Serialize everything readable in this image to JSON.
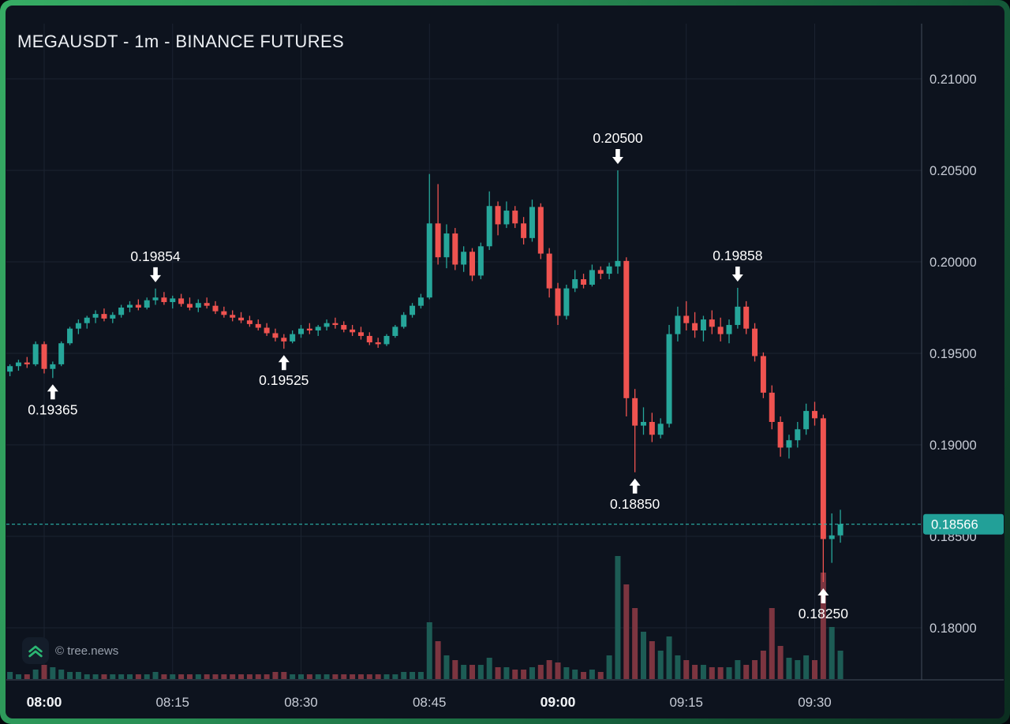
{
  "header": {
    "title": "MEGAUSDT - 1m - BINANCE FUTURES"
  },
  "watermark": {
    "text": "© tree.news",
    "logo_icon": "double-chevron-up-icon"
  },
  "colors": {
    "background": "#0d131e",
    "frame_green": "#2fa45e",
    "bull": "#26a69a",
    "bear": "#ef5350",
    "bull_volume": "#1d5c55",
    "bear_volume": "#7c3540",
    "grid": "#1b2330",
    "separator": "#434c5b",
    "axis_text": "#c7ccd6",
    "axis_text_bold": "#f2f4f7",
    "annotation_text": "#ffffff",
    "last_price_line": "#2cb5aa",
    "last_price_badge_bg": "#22a098",
    "last_price_badge_text": "#ffffff"
  },
  "chart_data": {
    "type": "candlestick",
    "title": "MEGAUSDT - 1m - BINANCE FUTURES",
    "symbol": "MEGAUSDT",
    "interval": "1m",
    "exchange": "BINANCE FUTURES",
    "x_ticks": [
      {
        "label": "08:00",
        "bold": true
      },
      {
        "label": "08:15",
        "bold": false
      },
      {
        "label": "08:30",
        "bold": false
      },
      {
        "label": "08:45",
        "bold": false
      },
      {
        "label": "09:00",
        "bold": true
      },
      {
        "label": "09:15",
        "bold": false
      },
      {
        "label": "09:30",
        "bold": false
      }
    ],
    "y_ticks": [
      {
        "value": 0.21,
        "label": "0.21000"
      },
      {
        "value": 0.205,
        "label": "0.20500"
      },
      {
        "value": 0.2,
        "label": "0.20000"
      },
      {
        "value": 0.195,
        "label": "0.19500"
      },
      {
        "value": 0.19,
        "label": "0.19000"
      },
      {
        "value": 0.185,
        "label": "0.18500"
      },
      {
        "value": 0.18,
        "label": "0.18000"
      }
    ],
    "ylim": [
      0.1772,
      0.213
    ],
    "grid": true,
    "last_price": {
      "value": 0.18566,
      "label": "0.18566"
    },
    "annotations": [
      {
        "label": "0.19365",
        "time": "08:01",
        "price": 0.19365,
        "kind": "swing-low"
      },
      {
        "label": "0.19854",
        "time": "08:13",
        "price": 0.19854,
        "kind": "swing-high"
      },
      {
        "label": "0.19525",
        "time": "08:28",
        "price": 0.19525,
        "kind": "swing-low"
      },
      {
        "label": "0.20500",
        "time": "09:07",
        "price": 0.205,
        "kind": "swing-high"
      },
      {
        "label": "0.18850",
        "time": "09:09",
        "price": 0.1885,
        "kind": "swing-low"
      },
      {
        "label": "0.19858",
        "time": "09:21",
        "price": 0.19858,
        "kind": "swing-high"
      },
      {
        "label": "0.18250",
        "time": "09:31",
        "price": 0.1825,
        "kind": "swing-low"
      }
    ],
    "volume_unit": "relative",
    "candle_fields": [
      "time",
      "open",
      "high",
      "low",
      "close",
      "volume"
    ],
    "candles": [
      [
        "07:56",
        0.194,
        0.1944,
        0.19375,
        0.1943,
        3
      ],
      [
        "07:57",
        0.1943,
        0.19465,
        0.19405,
        0.1945,
        2
      ],
      [
        "07:58",
        0.1945,
        0.1948,
        0.1942,
        0.1944,
        2
      ],
      [
        "07:59",
        0.1944,
        0.19565,
        0.1943,
        0.1955,
        4
      ],
      [
        "08:00",
        0.1955,
        0.19565,
        0.1939,
        0.19415,
        6
      ],
      [
        "08:01",
        0.19415,
        0.19455,
        0.19365,
        0.1944,
        5
      ],
      [
        "08:02",
        0.1944,
        0.19565,
        0.1943,
        0.19555,
        4
      ],
      [
        "08:03",
        0.19555,
        0.19645,
        0.19545,
        0.19635,
        3
      ],
      [
        "08:04",
        0.19635,
        0.19685,
        0.19605,
        0.19665,
        3
      ],
      [
        "08:05",
        0.19665,
        0.19705,
        0.19635,
        0.19695,
        2
      ],
      [
        "08:06",
        0.19695,
        0.19735,
        0.19665,
        0.19715,
        2
      ],
      [
        "08:07",
        0.19715,
        0.19745,
        0.19675,
        0.1969,
        2
      ],
      [
        "08:08",
        0.1969,
        0.19725,
        0.19665,
        0.1971,
        2
      ],
      [
        "08:09",
        0.1971,
        0.19765,
        0.19695,
        0.1975,
        2
      ],
      [
        "08:10",
        0.1975,
        0.19785,
        0.19725,
        0.19765,
        2
      ],
      [
        "08:11",
        0.19765,
        0.19795,
        0.19735,
        0.1975,
        2
      ],
      [
        "08:12",
        0.1975,
        0.19805,
        0.1974,
        0.1979,
        2
      ],
      [
        "08:13",
        0.1979,
        0.19854,
        0.19765,
        0.19805,
        3
      ],
      [
        "08:14",
        0.19805,
        0.19835,
        0.19765,
        0.1978,
        2
      ],
      [
        "08:15",
        0.1978,
        0.19815,
        0.19745,
        0.198,
        2
      ],
      [
        "08:16",
        0.198,
        0.19825,
        0.19755,
        0.1977,
        2
      ],
      [
        "08:17",
        0.1977,
        0.19805,
        0.19735,
        0.1975,
        2
      ],
      [
        "08:18",
        0.1975,
        0.19795,
        0.19725,
        0.19775,
        2
      ],
      [
        "08:19",
        0.19775,
        0.19805,
        0.19745,
        0.1976,
        2
      ],
      [
        "08:20",
        0.1976,
        0.19785,
        0.19715,
        0.1973,
        2
      ],
      [
        "08:21",
        0.1973,
        0.19755,
        0.19695,
        0.1971,
        2
      ],
      [
        "08:22",
        0.1971,
        0.19735,
        0.19675,
        0.19695,
        2
      ],
      [
        "08:23",
        0.19695,
        0.19725,
        0.19665,
        0.1968,
        2
      ],
      [
        "08:24",
        0.1968,
        0.19705,
        0.19645,
        0.1966,
        2
      ],
      [
        "08:25",
        0.1966,
        0.19685,
        0.19625,
        0.1964,
        2
      ],
      [
        "08:26",
        0.1964,
        0.19665,
        0.19595,
        0.1961,
        2
      ],
      [
        "08:27",
        0.1961,
        0.19635,
        0.19565,
        0.19585,
        3
      ],
      [
        "08:28",
        0.19585,
        0.19605,
        0.19525,
        0.19565,
        3
      ],
      [
        "08:29",
        0.19565,
        0.19625,
        0.19555,
        0.19605,
        2
      ],
      [
        "08:30",
        0.19605,
        0.19655,
        0.19585,
        0.19635,
        2
      ],
      [
        "08:31",
        0.19635,
        0.19665,
        0.19605,
        0.19625,
        2
      ],
      [
        "08:32",
        0.19625,
        0.19655,
        0.19595,
        0.19645,
        2
      ],
      [
        "08:33",
        0.19645,
        0.19685,
        0.19625,
        0.19665,
        2
      ],
      [
        "08:34",
        0.19665,
        0.19695,
        0.19635,
        0.19655,
        2
      ],
      [
        "08:35",
        0.19655,
        0.19675,
        0.19615,
        0.1963,
        2
      ],
      [
        "08:36",
        0.1963,
        0.19655,
        0.19595,
        0.19615,
        2
      ],
      [
        "08:37",
        0.19615,
        0.19645,
        0.19575,
        0.19595,
        2
      ],
      [
        "08:38",
        0.19595,
        0.19615,
        0.19545,
        0.1956,
        2
      ],
      [
        "08:39",
        0.1956,
        0.19585,
        0.1953,
        0.1955,
        2
      ],
      [
        "08:40",
        0.1955,
        0.19605,
        0.1954,
        0.19595,
        2
      ],
      [
        "08:41",
        0.19595,
        0.19655,
        0.19585,
        0.19645,
        2
      ],
      [
        "08:42",
        0.19645,
        0.19725,
        0.19635,
        0.1971,
        3
      ],
      [
        "08:43",
        0.1971,
        0.19775,
        0.19695,
        0.1976,
        3
      ],
      [
        "08:44",
        0.1976,
        0.19825,
        0.19745,
        0.19805,
        3
      ],
      [
        "08:45",
        0.19805,
        0.2048,
        0.19795,
        0.2021,
        24
      ],
      [
        "08:46",
        0.2021,
        0.20425,
        0.19985,
        0.20025,
        16
      ],
      [
        "08:47",
        0.20025,
        0.20205,
        0.19965,
        0.20155,
        10
      ],
      [
        "08:48",
        0.20155,
        0.20185,
        0.19955,
        0.19985,
        8
      ],
      [
        "08:49",
        0.19985,
        0.20085,
        0.19945,
        0.20055,
        6
      ],
      [
        "08:50",
        0.20055,
        0.20075,
        0.19895,
        0.19925,
        6
      ],
      [
        "08:51",
        0.19925,
        0.20105,
        0.19905,
        0.20085,
        6
      ],
      [
        "08:52",
        0.20085,
        0.20385,
        0.20065,
        0.20305,
        9
      ],
      [
        "08:53",
        0.20305,
        0.2033,
        0.20145,
        0.20205,
        5
      ],
      [
        "08:54",
        0.20205,
        0.2033,
        0.20185,
        0.2028,
        5
      ],
      [
        "08:55",
        0.2028,
        0.20305,
        0.20185,
        0.2021,
        4
      ],
      [
        "08:56",
        0.2021,
        0.20245,
        0.20095,
        0.2013,
        4
      ],
      [
        "08:57",
        0.2013,
        0.2034,
        0.2011,
        0.203,
        5
      ],
      [
        "08:58",
        0.203,
        0.2032,
        0.20015,
        0.20045,
        6
      ],
      [
        "08:59",
        0.20045,
        0.20075,
        0.19805,
        0.19855,
        8
      ],
      [
        "09:00",
        0.19855,
        0.19885,
        0.19655,
        0.19705,
        7
      ],
      [
        "09:01",
        0.19705,
        0.19875,
        0.19685,
        0.19855,
        5
      ],
      [
        "09:02",
        0.19855,
        0.19955,
        0.19835,
        0.19905,
        4
      ],
      [
        "09:03",
        0.19905,
        0.19935,
        0.19855,
        0.19875,
        3
      ],
      [
        "09:04",
        0.19875,
        0.19985,
        0.19865,
        0.19955,
        4
      ],
      [
        "09:05",
        0.19955,
        0.19975,
        0.19905,
        0.19935,
        3
      ],
      [
        "09:06",
        0.19935,
        0.19995,
        0.19905,
        0.19975,
        10
      ],
      [
        "09:07",
        0.19975,
        0.205,
        0.19935,
        0.20005,
        52
      ],
      [
        "09:08",
        0.20005,
        0.20025,
        0.19155,
        0.19255,
        40
      ],
      [
        "09:09",
        0.19255,
        0.19305,
        0.1885,
        0.19105,
        30
      ],
      [
        "09:10",
        0.19105,
        0.19205,
        0.19055,
        0.19125,
        20
      ],
      [
        "09:11",
        0.19125,
        0.19175,
        0.19015,
        0.19055,
        16
      ],
      [
        "09:12",
        0.19055,
        0.19145,
        0.19035,
        0.19115,
        12
      ],
      [
        "09:13",
        0.19115,
        0.19655,
        0.19095,
        0.19605,
        18
      ],
      [
        "09:14",
        0.19605,
        0.19755,
        0.19565,
        0.19705,
        10
      ],
      [
        "09:15",
        0.19705,
        0.19785,
        0.19625,
        0.19665,
        8
      ],
      [
        "09:16",
        0.19665,
        0.19725,
        0.19585,
        0.19625,
        6
      ],
      [
        "09:17",
        0.19625,
        0.19705,
        0.19565,
        0.19685,
        6
      ],
      [
        "09:18",
        0.19685,
        0.19735,
        0.19605,
        0.19645,
        5
      ],
      [
        "09:19",
        0.19645,
        0.19695,
        0.19565,
        0.19605,
        5
      ],
      [
        "09:20",
        0.19605,
        0.19685,
        0.19555,
        0.19655,
        5
      ],
      [
        "09:21",
        0.19655,
        0.19858,
        0.19635,
        0.19755,
        8
      ],
      [
        "09:22",
        0.19755,
        0.19785,
        0.19605,
        0.19635,
        6
      ],
      [
        "09:23",
        0.19635,
        0.19665,
        0.19455,
        0.19485,
        8
      ],
      [
        "09:24",
        0.19485,
        0.19505,
        0.19255,
        0.19285,
        12
      ],
      [
        "09:25",
        0.19285,
        0.19325,
        0.19085,
        0.19125,
        30
      ],
      [
        "09:26",
        0.19125,
        0.19155,
        0.18935,
        0.18985,
        14
      ],
      [
        "09:27",
        0.18985,
        0.19055,
        0.18925,
        0.19025,
        9
      ],
      [
        "09:28",
        0.19025,
        0.19125,
        0.18985,
        0.19085,
        8
      ],
      [
        "09:29",
        0.19085,
        0.19225,
        0.19055,
        0.19185,
        10
      ],
      [
        "09:30",
        0.19185,
        0.19235,
        0.19105,
        0.19145,
        8
      ],
      [
        "09:31",
        0.19145,
        0.19165,
        0.1825,
        0.18485,
        45
      ],
      [
        "09:32",
        0.18485,
        0.18625,
        0.18355,
        0.18505,
        22
      ],
      [
        "09:33",
        0.18505,
        0.18645,
        0.18465,
        0.18566,
        12
      ]
    ]
  }
}
